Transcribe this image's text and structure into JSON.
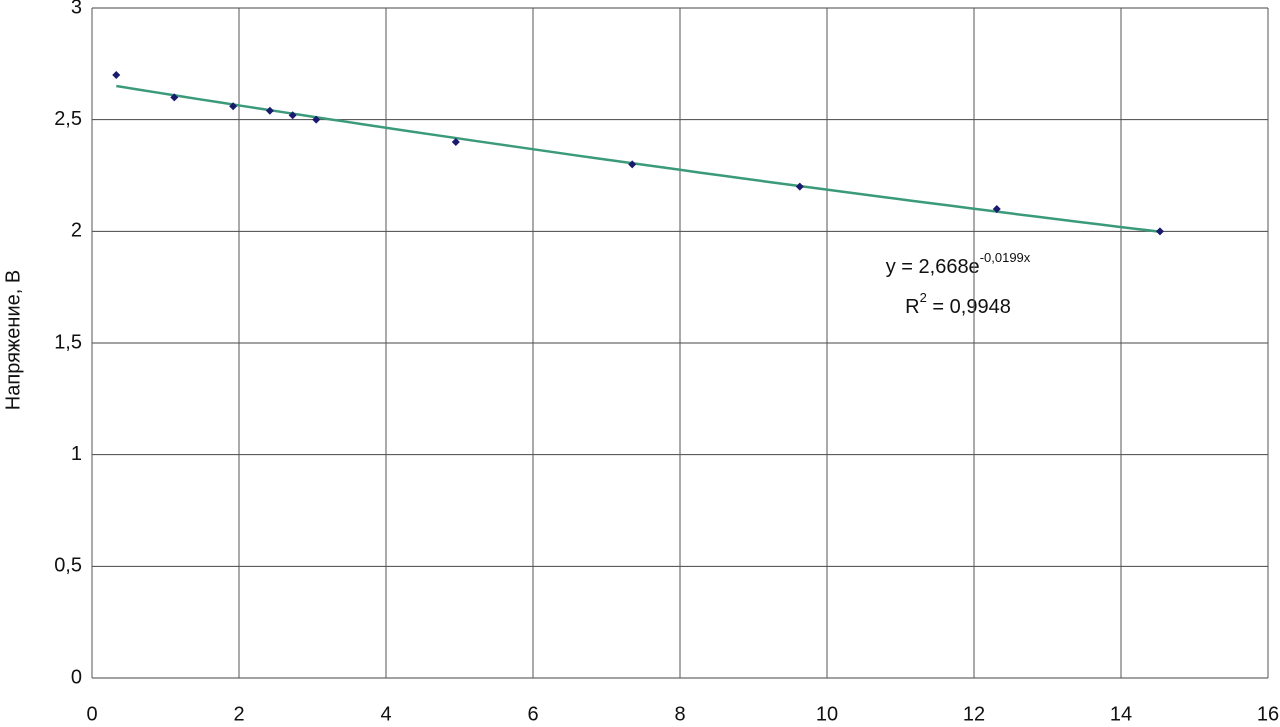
{
  "chart_data": {
    "type": "scatter",
    "y_label": "Напряжение, В",
    "x": [
      0.33,
      1.12,
      1.92,
      2.42,
      2.73,
      3.05,
      4.95,
      7.35,
      9.63,
      12.31,
      14.53
    ],
    "values": [
      2.7,
      2.6,
      2.56,
      2.54,
      2.52,
      2.5,
      2.4,
      2.3,
      2.2,
      2.1,
      2.0
    ],
    "color": "#1a1a6e",
    "trendline": {
      "a": 2.668,
      "b": -0.0199,
      "color": "#3a9a7a",
      "equation": "y = 2,668e",
      "equation_exponent": "-0,0199x",
      "r2_base": "R",
      "r2_sup": "2",
      "r2_value": " = 0,9948"
    },
    "xlim": [
      0,
      16
    ],
    "xticks": [
      0,
      2,
      4,
      6,
      8,
      10,
      12,
      14,
      16
    ],
    "ylim": [
      0,
      3
    ],
    "yticks": [
      0,
      {
        "value": 0.5,
        "label": "0,5"
      },
      1,
      {
        "value": 1.5,
        "label": "1,5"
      },
      2,
      {
        "value": 2.5,
        "label": "2,5"
      },
      3
    ],
    "grid": true
  }
}
